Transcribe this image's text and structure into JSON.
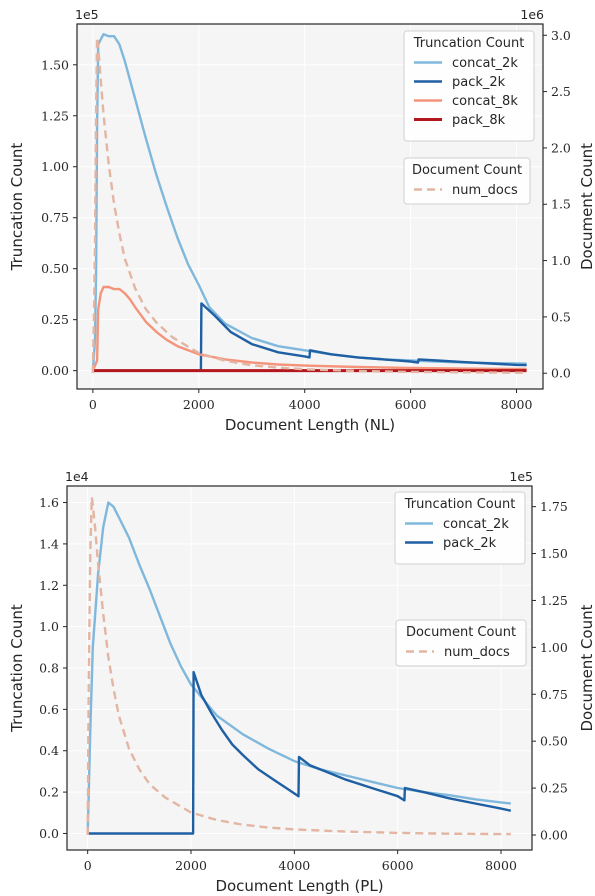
{
  "chart_data": [
    {
      "type": "line",
      "xlabel": "Document Length (NL)",
      "ylabel": "Truncation Count",
      "ylabel_right": "Document Count",
      "x_multiplier": "",
      "y_multiplier": "1e5",
      "y2_multiplier": "1e6",
      "xlim": [
        -300,
        8500
      ],
      "ylim": [
        -0.09,
        1.7
      ],
      "y2lim": [
        -0.14,
        3.1
      ],
      "x_ticks": [
        0,
        2000,
        4000,
        6000,
        8000
      ],
      "y_ticks": [
        0.0,
        0.25,
        0.5,
        0.75,
        1.0,
        1.25,
        1.5
      ],
      "y_tick_labels": [
        "0.00",
        "0.25",
        "0.50",
        "0.75",
        "1.00",
        "1.25",
        "1.50"
      ],
      "y2_ticks": [
        0.0,
        0.5,
        1.0,
        1.5,
        2.0,
        2.5,
        3.0
      ],
      "y2_tick_labels": [
        "0.0",
        "0.5",
        "1.0",
        "1.5",
        "2.0",
        "2.5",
        "3.0"
      ],
      "grid": true,
      "legends": [
        {
          "title": "Truncation Count",
          "placement": "top-right",
          "items": [
            "concat_2k",
            "pack_2k",
            "concat_8k",
            "pack_8k"
          ]
        },
        {
          "title": "Document Count",
          "placement": "upper-right",
          "items": [
            "num_docs"
          ]
        }
      ],
      "series": [
        {
          "name": "concat_2k",
          "axis": "left",
          "color": "#7fb8dc",
          "width": 2.4,
          "dash": "",
          "x": [
            0,
            40,
            60,
            80,
            100,
            200,
            300,
            400,
            500,
            600,
            800,
            1000,
            1200,
            1400,
            1600,
            1800,
            2000,
            2200,
            2500,
            3000,
            3500,
            4000,
            4500,
            5000,
            5500,
            6000,
            6500,
            7000,
            7500,
            8000,
            8190
          ],
          "y": [
            0,
            0.15,
            0.5,
            1.2,
            1.6,
            1.65,
            1.64,
            1.64,
            1.6,
            1.52,
            1.33,
            1.14,
            0.96,
            0.8,
            0.65,
            0.52,
            0.42,
            0.31,
            0.23,
            0.16,
            0.12,
            0.1,
            0.08,
            0.065,
            0.055,
            0.05,
            0.045,
            0.04,
            0.037,
            0.035,
            0.034
          ]
        },
        {
          "name": "pack_2k",
          "axis": "left",
          "color": "#1f5fa3",
          "width": 2.4,
          "dash": "",
          "x": [
            0,
            2040,
            2050,
            2300,
            2600,
            3000,
            3500,
            4000,
            4090,
            4100,
            4500,
            5000,
            5500,
            6000,
            6140,
            6150,
            6500,
            7000,
            7500,
            8000,
            8190
          ],
          "y": [
            0,
            0,
            0.33,
            0.27,
            0.19,
            0.13,
            0.09,
            0.07,
            0.065,
            0.1,
            0.08,
            0.065,
            0.055,
            0.045,
            0.04,
            0.055,
            0.05,
            0.042,
            0.035,
            0.028,
            0.027
          ]
        },
        {
          "name": "concat_8k",
          "axis": "left",
          "color": "#f4947b",
          "width": 2.4,
          "dash": "",
          "x": [
            0,
            80,
            100,
            150,
            200,
            300,
            400,
            500,
            600,
            700,
            800,
            1000,
            1200,
            1400,
            1600,
            1800,
            2000,
            2500,
            3000,
            3500,
            4000,
            5000,
            6000,
            7000,
            8000,
            8190
          ],
          "y": [
            0,
            0.05,
            0.3,
            0.38,
            0.41,
            0.41,
            0.4,
            0.4,
            0.38,
            0.35,
            0.31,
            0.24,
            0.19,
            0.15,
            0.12,
            0.1,
            0.08,
            0.055,
            0.04,
            0.03,
            0.025,
            0.018,
            0.013,
            0.01,
            0.008,
            0.008
          ]
        },
        {
          "name": "pack_8k",
          "axis": "left",
          "color": "#b3161d",
          "width": 3.0,
          "dash": "",
          "x": [
            0,
            8190
          ],
          "y": [
            0,
            0
          ]
        },
        {
          "name": "num_docs",
          "axis": "right",
          "color": "#e3b5a2",
          "width": 2.4,
          "dash": "8,5",
          "x": [
            0,
            20,
            40,
            60,
            80,
            100,
            150,
            200,
            300,
            400,
            500,
            600,
            800,
            1000,
            1200,
            1500,
            2000,
            2500,
            3000,
            3500,
            4000,
            5000,
            6000,
            7000,
            8000,
            8190
          ],
          "y": [
            0,
            0.5,
            1.2,
            2.3,
            2.98,
            2.9,
            2.6,
            2.3,
            1.85,
            1.5,
            1.24,
            1.02,
            0.75,
            0.57,
            0.45,
            0.32,
            0.18,
            0.11,
            0.07,
            0.05,
            0.035,
            0.02,
            0.012,
            0.008,
            0.005,
            0.005
          ]
        }
      ]
    },
    {
      "type": "line",
      "xlabel": "Document Length (PL)",
      "ylabel": "Truncation Count",
      "ylabel_right": "Document Count",
      "x_multiplier": "",
      "y_multiplier": "1e4",
      "y2_multiplier": "1e5",
      "xlim": [
        -400,
        8600
      ],
      "ylim": [
        -0.8,
        16.8
      ],
      "y2lim": [
        -0.08,
        1.86
      ],
      "x_ticks": [
        0,
        2000,
        4000,
        6000,
        8000
      ],
      "y_ticks": [
        0.0,
        2.0,
        4.0,
        6.0,
        8.0,
        10.0,
        12.0,
        14.0,
        16.0
      ],
      "y_tick_labels": [
        "0.0",
        "0.2",
        "0.4",
        "0.6",
        "0.8",
        "1.0",
        "1.2",
        "1.4",
        "1.6"
      ],
      "y2_ticks": [
        0.0,
        0.25,
        0.5,
        0.75,
        1.0,
        1.25,
        1.5,
        1.75
      ],
      "y2_tick_labels": [
        "0.00",
        "0.25",
        "0.50",
        "0.75",
        "1.00",
        "1.25",
        "1.50",
        "1.75"
      ],
      "grid": true,
      "legends": [
        {
          "title": "Truncation Count",
          "placement": "top-right",
          "items": [
            "concat_2k",
            "pack_2k"
          ]
        },
        {
          "title": "Document Count",
          "placement": "center-right",
          "items": [
            "num_docs"
          ]
        }
      ],
      "series": [
        {
          "name": "concat_2k",
          "axis": "left",
          "color": "#7fb8dc",
          "width": 2.4,
          "dash": "",
          "x": [
            0,
            50,
            100,
            200,
            300,
            400,
            500,
            600,
            800,
            1000,
            1200,
            1400,
            1600,
            1800,
            2000,
            2500,
            3000,
            3500,
            4000,
            4500,
            5000,
            5500,
            6000,
            6500,
            7000,
            7500,
            8000,
            8190
          ],
          "y": [
            0,
            5.0,
            9.0,
            12.5,
            14.8,
            16.0,
            15.8,
            15.3,
            14.3,
            13.0,
            11.8,
            10.5,
            9.2,
            8.1,
            7.2,
            5.7,
            4.8,
            4.1,
            3.5,
            3.1,
            2.8,
            2.5,
            2.2,
            2.0,
            1.85,
            1.65,
            1.5,
            1.45
          ]
        },
        {
          "name": "pack_2k",
          "axis": "left",
          "color": "#1f5fa3",
          "width": 2.4,
          "dash": "",
          "x": [
            0,
            2040,
            2050,
            2200,
            2400,
            2600,
            2800,
            3000,
            3300,
            3600,
            3900,
            4080,
            4090,
            4300,
            4600,
            5000,
            5500,
            6000,
            6130,
            6140,
            6500,
            7000,
            7500,
            8000,
            8190
          ],
          "y": [
            0,
            0,
            7.8,
            6.7,
            5.8,
            5.0,
            4.3,
            3.8,
            3.1,
            2.6,
            2.1,
            1.8,
            3.7,
            3.3,
            3.0,
            2.6,
            2.2,
            1.8,
            1.6,
            2.2,
            2.0,
            1.7,
            1.45,
            1.2,
            1.1
          ]
        },
        {
          "name": "num_docs",
          "axis": "right",
          "color": "#e3b5a2",
          "width": 2.4,
          "dash": "8,5",
          "x": [
            0,
            20,
            50,
            80,
            100,
            150,
            200,
            300,
            400,
            500,
            600,
            800,
            1000,
            1200,
            1500,
            2000,
            2500,
            3000,
            3500,
            4000,
            5000,
            6000,
            7000,
            8000,
            8190
          ],
          "y": [
            0,
            0.8,
            1.5,
            1.8,
            1.76,
            1.62,
            1.45,
            1.18,
            0.95,
            0.78,
            0.64,
            0.46,
            0.35,
            0.27,
            0.2,
            0.12,
            0.08,
            0.055,
            0.04,
            0.03,
            0.018,
            0.011,
            0.007,
            0.005,
            0.005
          ]
        }
      ]
    }
  ]
}
